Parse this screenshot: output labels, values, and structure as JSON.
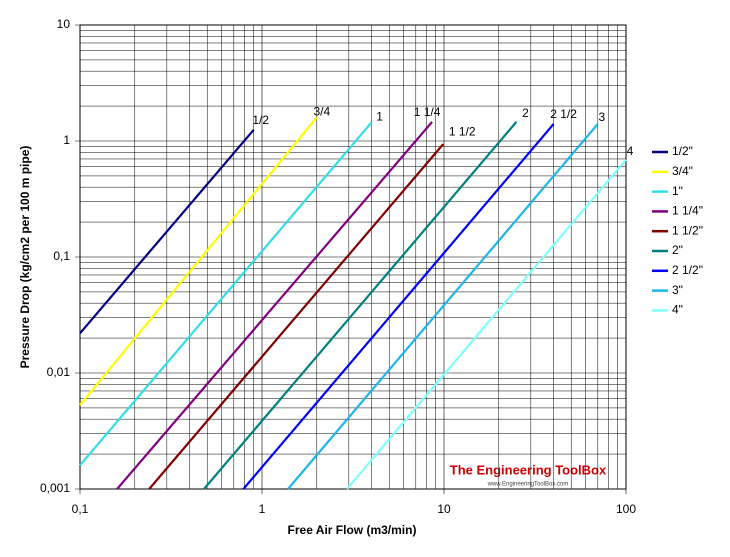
{
  "chart_data": {
    "type": "line",
    "x_label": "Free Air Flow (m3/min)",
    "y_label": "Pressure Drop (kg/cm2 per 100 m pipe)",
    "xscale": "log",
    "yscale": "log",
    "xlim": [
      0.1,
      100
    ],
    "ylim": [
      0.001,
      10
    ],
    "xticks": [
      {
        "value": 0.1,
        "label": "0,1"
      },
      1,
      10,
      100
    ],
    "yticks": [
      {
        "value": 0.001,
        "label": "0,001"
      },
      {
        "value": 0.01,
        "label": "0,01"
      },
      {
        "value": 0.1,
        "label": "0,1"
      },
      1,
      10
    ],
    "grid": true,
    "legend": "right",
    "series": [
      {
        "name": "1/2\"",
        "label": "1/2",
        "color": "#000080",
        "x": [
          0.1,
          0.9
        ],
        "values": [
          0.022,
          1.25
        ]
      },
      {
        "name": "3/4\"",
        "label": "3/4",
        "color": "#ffff00",
        "x": [
          0.1,
          2
        ],
        "values": [
          0.0053,
          1.6
        ]
      },
      {
        "name": "1\"",
        "label": "1",
        "color": "#33dde8",
        "x": [
          0.1,
          4
        ],
        "values": [
          0.0016,
          1.45
        ]
      },
      {
        "name": "1 1/4\"",
        "label": "1 1/4",
        "color": "#800080",
        "x": [
          0.16,
          8.6
        ],
        "values": [
          0.001,
          1.46
        ]
      },
      {
        "name": "1 1/2\"",
        "label": "1 1/2",
        "color": "#800000",
        "x": [
          0.24,
          9.9
        ],
        "values": [
          0.001,
          0.94
        ]
      },
      {
        "name": "2\"",
        "label": "2",
        "color": "#008080",
        "x": [
          0.48,
          25
        ],
        "values": [
          0.001,
          1.46
        ]
      },
      {
        "name": "2 1/2\"",
        "label": "2 1/2",
        "color": "#0000ff",
        "x": [
          0.79,
          40
        ],
        "values": [
          0.001,
          1.4
        ]
      },
      {
        "name": "3\"",
        "label": "3",
        "color": "#1fb4ec",
        "x": [
          1.39,
          70
        ],
        "values": [
          0.001,
          1.4
        ]
      },
      {
        "name": "4\"",
        "label": "4",
        "color": "#80ffff",
        "x": [
          2.93,
          100
        ],
        "values": [
          0.001,
          0.69
        ]
      }
    ],
    "watermark": {
      "title": "The Engineering ToolBox",
      "url": "www.EngineeringToolBox.com"
    }
  }
}
